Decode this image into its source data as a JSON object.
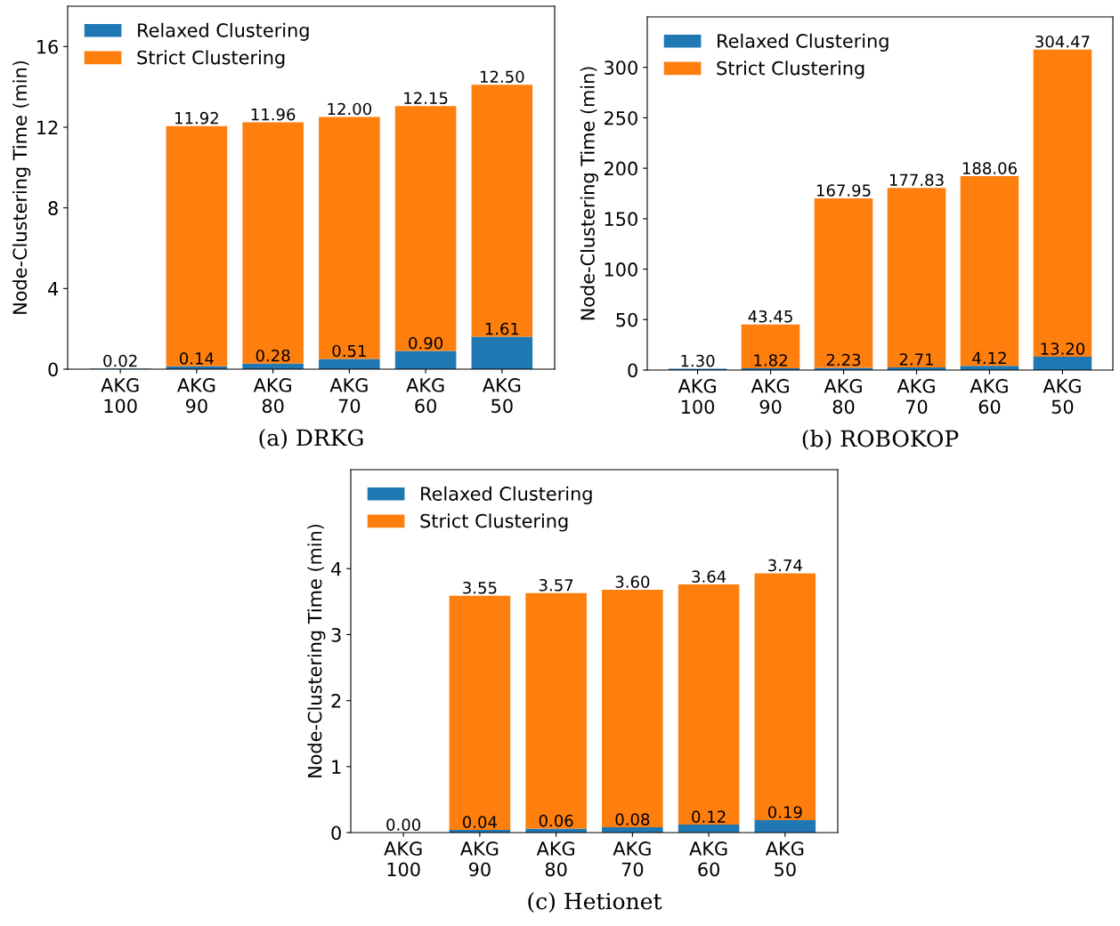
{
  "chart_data": [
    {
      "type": "bar",
      "stacked": true,
      "xlabel": "(a) DRKG",
      "ylabel": "Node-Clustering Time (min)",
      "categories": [
        "AKG\n100",
        "AKG\n90",
        "AKG\n80",
        "AKG\n70",
        "AKG\n60",
        "AKG\n50"
      ],
      "ylim": [
        0,
        18
      ],
      "yticks": [
        0,
        4,
        8,
        12,
        16
      ],
      "legend": "top left",
      "grid": false,
      "series": [
        {
          "name": "Relaxed Clustering",
          "color": "#1f77b4",
          "values": [
            0.02,
            0.14,
            0.28,
            0.51,
            0.9,
            1.61
          ],
          "value_labels": [
            "0.02",
            "0.14",
            "0.28",
            "0.51",
            "0.90",
            "1.61"
          ]
        },
        {
          "name": "Strict Clustering",
          "color": "#ff7f0e",
          "values": [
            0,
            11.92,
            11.96,
            12.0,
            12.15,
            12.5
          ],
          "value_labels": [
            null,
            "11.92",
            "11.96",
            "12.00",
            "12.15",
            "12.50"
          ]
        }
      ]
    },
    {
      "type": "bar",
      "stacked": true,
      "xlabel": "(b) ROBOKOP",
      "ylabel": "Node-Clustering Time (min)",
      "categories": [
        "AKG\n100",
        "AKG\n90",
        "AKG\n80",
        "AKG\n70",
        "AKG\n60",
        "AKG\n50"
      ],
      "ylim": [
        0,
        350
      ],
      "yticks": [
        0,
        50,
        100,
        150,
        200,
        250,
        300
      ],
      "legend": "top left",
      "grid": false,
      "series": [
        {
          "name": "Relaxed Clustering",
          "color": "#1f77b4",
          "values": [
            1.3,
            1.82,
            2.23,
            2.71,
            4.12,
            13.2
          ],
          "value_labels": [
            "1.30",
            "1.82",
            "2.23",
            "2.71",
            "4.12",
            "13.20"
          ]
        },
        {
          "name": "Strict Clustering",
          "color": "#ff7f0e",
          "values": [
            0,
            43.45,
            167.95,
            177.83,
            188.06,
            304.47
          ],
          "value_labels": [
            null,
            "43.45",
            "167.95",
            "177.83",
            "188.06",
            "304.47"
          ]
        }
      ]
    },
    {
      "type": "bar",
      "stacked": true,
      "xlabel": "(c) Hetionet",
      "ylabel": "Node-Clustering Time (min)",
      "categories": [
        "AKG\n100",
        "AKG\n90",
        "AKG\n80",
        "AKG\n70",
        "AKG\n60",
        "AKG\n50"
      ],
      "ylim": [
        0,
        5.5
      ],
      "yticks": [
        0,
        1,
        2,
        3,
        4
      ],
      "legend": "top left",
      "grid": false,
      "series": [
        {
          "name": "Relaxed Clustering",
          "color": "#1f77b4",
          "values": [
            0.0,
            0.04,
            0.06,
            0.08,
            0.12,
            0.19
          ],
          "value_labels": [
            "0.00",
            "0.04",
            "0.06",
            "0.08",
            "0.12",
            "0.19"
          ]
        },
        {
          "name": "Strict Clustering",
          "color": "#ff7f0e",
          "values": [
            0,
            3.55,
            3.57,
            3.6,
            3.64,
            3.74
          ],
          "value_labels": [
            null,
            "3.55",
            "3.57",
            "3.60",
            "3.64",
            "3.74"
          ]
        }
      ]
    }
  ]
}
